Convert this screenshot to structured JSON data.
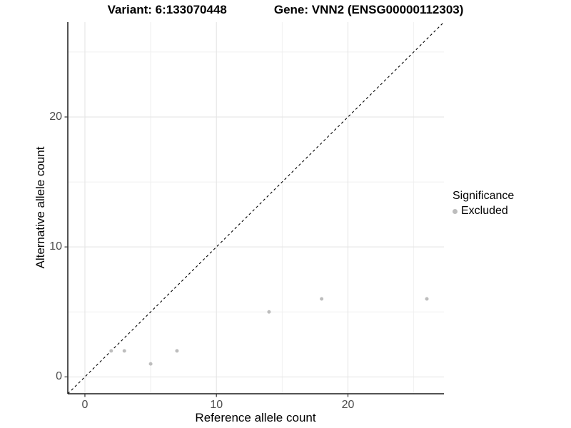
{
  "figure": {
    "title_left": "Variant: 6:133070448",
    "title_right": "Gene: VNN2 (ENSG00000112303)"
  },
  "chart_data": {
    "type": "scatter",
    "title_left": "Variant: 6:133070448",
    "title_right": "Gene: VNN2 (ENSG00000112303)",
    "xlabel": "Reference allele count",
    "ylabel": "Alternative allele count",
    "xlim": [
      -1.3,
      27.3
    ],
    "ylim": [
      -1.3,
      27.3
    ],
    "x_ticks": [
      0,
      10,
      20
    ],
    "y_ticks": [
      0,
      10,
      20
    ],
    "x_minor_ticks": [
      5,
      15,
      25
    ],
    "y_minor_ticks": [
      5,
      15,
      25
    ],
    "grid": true,
    "series": [
      {
        "name": "Excluded",
        "color": "#bdbdbd",
        "points": [
          [
            2,
            2
          ],
          [
            3,
            2
          ],
          [
            5,
            1
          ],
          [
            7,
            2
          ],
          [
            14,
            5
          ],
          [
            18,
            6
          ],
          [
            26,
            6
          ]
        ]
      }
    ],
    "reference_line": {
      "type": "abline",
      "slope": 1,
      "intercept": 0,
      "style": "dashed",
      "color": "#000000"
    },
    "legend": {
      "title": "Significance",
      "position": "right",
      "items": [
        {
          "label": "Excluded",
          "color": "#bdbdbd"
        }
      ]
    },
    "colors": {
      "background": "#ffffff",
      "grid_major": "#e3e3e3",
      "grid_minor": "#f0f0f0",
      "axis_line": "#1a1a1a",
      "tick_mark": "#333333",
      "tick_text": "#4d4d4d"
    }
  }
}
